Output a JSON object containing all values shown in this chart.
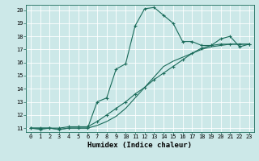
{
  "title": "",
  "xlabel": "Humidex (Indice chaleur)",
  "bg_color": "#cce8e8",
  "line_color": "#1a6b5a",
  "grid_color": "#ffffff",
  "xlim": [
    -0.5,
    23.5
  ],
  "ylim": [
    10.7,
    20.4
  ],
  "xticks": [
    0,
    1,
    2,
    3,
    4,
    5,
    6,
    7,
    8,
    9,
    10,
    11,
    12,
    13,
    14,
    15,
    16,
    17,
    18,
    19,
    20,
    21,
    22,
    23
  ],
  "yticks": [
    11,
    12,
    13,
    14,
    15,
    16,
    17,
    18,
    19,
    20
  ],
  "line1_x": [
    0,
    1,
    2,
    3,
    4,
    5,
    6,
    7,
    8,
    9,
    10,
    11,
    12,
    13,
    14,
    15,
    16,
    17,
    18,
    19,
    20,
    21,
    22,
    23
  ],
  "line1_y": [
    11.0,
    10.9,
    11.0,
    10.9,
    11.0,
    11.0,
    11.0,
    13.0,
    13.3,
    15.5,
    15.9,
    18.8,
    20.1,
    20.2,
    19.6,
    19.0,
    17.6,
    17.6,
    17.3,
    17.3,
    17.8,
    18.0,
    17.2,
    17.4
  ],
  "line2_x": [
    0,
    1,
    2,
    3,
    4,
    5,
    6,
    7,
    8,
    9,
    10,
    11,
    12,
    13,
    14,
    15,
    16,
    17,
    18,
    19,
    20,
    21,
    22,
    23
  ],
  "line2_y": [
    11.0,
    11.0,
    11.0,
    11.0,
    11.1,
    11.1,
    11.1,
    11.5,
    12.0,
    12.5,
    13.0,
    13.6,
    14.1,
    14.7,
    15.2,
    15.7,
    16.2,
    16.7,
    17.1,
    17.3,
    17.4,
    17.4,
    17.4,
    17.4
  ],
  "line3_x": [
    0,
    1,
    2,
    3,
    4,
    5,
    6,
    7,
    8,
    9,
    10,
    11,
    12,
    13,
    14,
    15,
    16,
    17,
    18,
    19,
    20,
    21,
    22,
    23
  ],
  "line3_y": [
    11.0,
    11.0,
    11.0,
    10.9,
    11.0,
    11.0,
    11.0,
    11.2,
    11.5,
    11.9,
    12.5,
    13.3,
    14.1,
    14.9,
    15.7,
    16.1,
    16.4,
    16.7,
    17.0,
    17.2,
    17.3,
    17.4,
    17.4,
    17.4
  ],
  "tick_fontsize": 5,
  "xlabel_fontsize": 6.5,
  "marker_size": 3,
  "linewidth": 0.8
}
